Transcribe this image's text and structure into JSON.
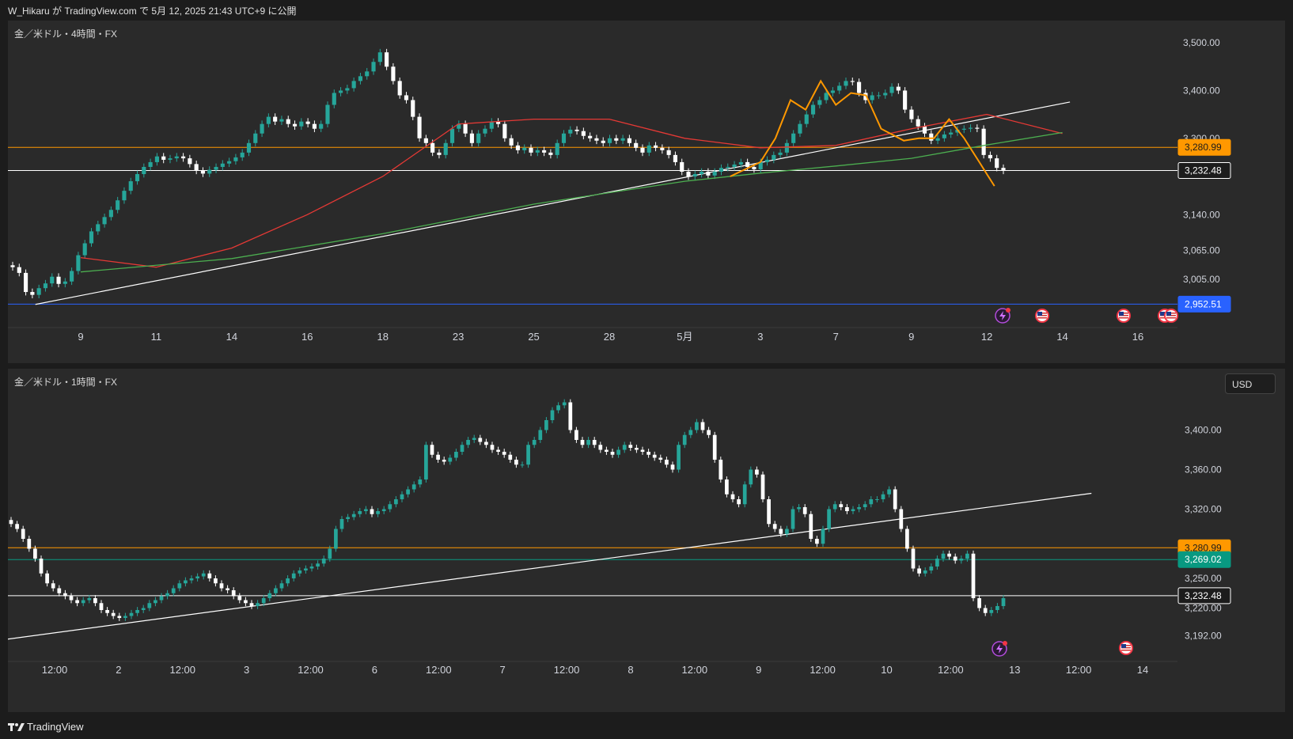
{
  "header": {
    "published_text": "W_Hikaru が TradingView.com で 5月 12, 2025 21:43 UTC+9 に公開"
  },
  "panes": [
    {
      "title": "金／米ドル・4時間・FX"
    },
    {
      "title": "金／米ドル・1時間・FX",
      "currency_button": "USD"
    }
  ],
  "footer": {
    "brand": "TradingView"
  },
  "colors": {
    "background": "#1c1c1c",
    "pane": "#2a2a2a",
    "up_candle": "#26a69a",
    "down_candle": "#ffffff",
    "ema_red": "#e53935",
    "ma_green": "#4caf50",
    "ma_teal": "#26a69a",
    "zigzag": "#ff9800",
    "level_orange": "#ff9800",
    "level_blue": "#2962ff",
    "level_teal": "#089981",
    "trend_line": "#ffffff"
  },
  "chart_data": [
    {
      "type": "candlestick",
      "title": "金／米ドル・4時間・FX",
      "price_axis": {
        "ticks": [
          "3,500.00",
          "3,400.00",
          "3,300.00",
          "3,140.00",
          "3,065.00",
          "3,005.00"
        ],
        "range": [
          2930,
          3530
        ]
      },
      "x_ticks": [
        "9",
        "11",
        "14",
        "16",
        "18",
        "23",
        "25",
        "28",
        "5月",
        "3",
        "7",
        "9",
        "12",
        "14",
        "16"
      ],
      "x_ticks_range": [
        0,
        14
      ],
      "price_labels": [
        {
          "value": 3280.99,
          "label": "3,280.99",
          "color": "#ff9800"
        },
        {
          "value": 3232.48,
          "label": "3,232.48",
          "color": "#ffffff"
        },
        {
          "value": 2952.51,
          "label": "2,952.51",
          "color": "#2962ff"
        }
      ],
      "trend_lines": [
        {
          "from": [
            -0.6,
            2952
          ],
          "to": [
            13.1,
            3376
          ]
        }
      ],
      "closes": [
        3030,
        3018,
        2978,
        2972,
        2986,
        2996,
        3010,
        2995,
        3000,
        3022,
        3055,
        3080,
        3105,
        3120,
        3135,
        3150,
        3170,
        3190,
        3210,
        3225,
        3240,
        3250,
        3262,
        3255,
        3258,
        3262,
        3258,
        3246,
        3232,
        3226,
        3234,
        3240,
        3247,
        3252,
        3260,
        3270,
        3290,
        3310,
        3330,
        3345,
        3335,
        3340,
        3330,
        3325,
        3335,
        3330,
        3320,
        3330,
        3370,
        3395,
        3400,
        3405,
        3420,
        3430,
        3440,
        3460,
        3480,
        3450,
        3420,
        3390,
        3380,
        3345,
        3300,
        3290,
        3270,
        3265,
        3290,
        3320,
        3330,
        3310,
        3290,
        3310,
        3320,
        3335,
        3330,
        3300,
        3285,
        3275,
        3280,
        3270,
        3275,
        3270,
        3265,
        3290,
        3310,
        3318,
        3315,
        3305,
        3300,
        3295,
        3290,
        3300,
        3295,
        3300,
        3290,
        3280,
        3270,
        3285,
        3280,
        3275,
        3265,
        3250,
        3230,
        3220,
        3225,
        3230,
        3222,
        3230,
        3238,
        3240,
        3245,
        3250,
        3240,
        3235,
        3250,
        3255,
        3265,
        3270,
        3290,
        3310,
        3330,
        3350,
        3370,
        3380,
        3395,
        3400,
        3410,
        3420,
        3418,
        3395,
        3380,
        3390,
        3390,
        3395,
        3408,
        3400,
        3360,
        3340,
        3325,
        3310,
        3295,
        3300,
        3308,
        3312,
        3318,
        3320,
        3322,
        3320,
        3265,
        3258,
        3238,
        3232
      ],
      "series": [
        {
          "name": "",
          "color": "#e53935",
          "x": [
            0,
            1,
            2,
            3,
            4,
            5,
            6,
            7,
            8,
            9,
            10,
            11,
            12,
            13
          ],
          "y": [
            3050,
            3030,
            3070,
            3140,
            3220,
            3330,
            3340,
            3340,
            3300,
            3280,
            3285,
            3320,
            3350,
            3310
          ]
        },
        {
          "name": "",
          "color": "#4caf50",
          "x": [
            0,
            2,
            4,
            6,
            8,
            9,
            10,
            11,
            12,
            13
          ],
          "y": [
            3020,
            3048,
            3100,
            3162,
            3210,
            3227,
            3242,
            3258,
            3286,
            3312
          ]
        },
        {
          "name": "",
          "color": "#ff9800",
          "x": [
            8.6,
            9.0,
            9.2,
            9.4,
            9.6,
            9.8,
            10.0,
            10.2,
            10.4,
            10.6,
            10.9,
            11.1,
            11.3,
            11.5,
            11.7,
            11.9,
            12.0,
            12.1
          ],
          "y": [
            3220,
            3250,
            3300,
            3380,
            3360,
            3420,
            3370,
            3395,
            3390,
            3320,
            3295,
            3300,
            3300,
            3340,
            3300,
            3250,
            3225,
            3200
          ]
        }
      ]
    },
    {
      "type": "candlestick",
      "title": "金／米ドル・1時間・FX",
      "price_axis": {
        "ticks": [
          "3,400.00",
          "3,360.00",
          "3,320.00",
          "3,250.00",
          "3,220.00",
          "3,192.00"
        ],
        "range": [
          3170,
          3430
        ]
      },
      "x_ticks": [
        "12:00",
        "2",
        "12:00",
        "3",
        "12:00",
        "6",
        "12:00",
        "7",
        "12:00",
        "8",
        "12:00",
        "9",
        "12:00",
        "10",
        "12:00",
        "13",
        "12:00",
        "14"
      ],
      "x_ticks_range": [
        0,
        17
      ],
      "price_labels": [
        {
          "value": 3280.99,
          "label": "3,280.99",
          "color": "#ff9800"
        },
        {
          "value": 3269.02,
          "label": "3,269.02",
          "color": "#089981"
        },
        {
          "value": 3232.48,
          "label": "3,232.48",
          "color": "#ffffff"
        }
      ],
      "trend_lines": [
        {
          "from": [
            -0.8,
            3188
          ],
          "to": [
            16.2,
            3336
          ]
        }
      ],
      "closes": [
        3305,
        3300,
        3290,
        3280,
        3270,
        3255,
        3245,
        3240,
        3235,
        3232,
        3228,
        3225,
        3228,
        3230,
        3225,
        3218,
        3215,
        3212,
        3210,
        3212,
        3215,
        3218,
        3220,
        3225,
        3228,
        3232,
        3235,
        3240,
        3245,
        3248,
        3250,
        3252,
        3255,
        3250,
        3245,
        3240,
        3238,
        3232,
        3228,
        3225,
        3222,
        3225,
        3230,
        3235,
        3240,
        3245,
        3250,
        3255,
        3258,
        3260,
        3262,
        3265,
        3270,
        3280,
        3300,
        3310,
        3312,
        3315,
        3318,
        3320,
        3315,
        3318,
        3320,
        3325,
        3330,
        3335,
        3340,
        3345,
        3350,
        3385,
        3375,
        3370,
        3368,
        3372,
        3378,
        3385,
        3390,
        3392,
        3388,
        3385,
        3380,
        3378,
        3375,
        3370,
        3365,
        3365,
        3385,
        3390,
        3400,
        3410,
        3420,
        3425,
        3428,
        3400,
        3390,
        3385,
        3390,
        3385,
        3380,
        3378,
        3375,
        3380,
        3385,
        3382,
        3380,
        3378,
        3375,
        3372,
        3370,
        3365,
        3360,
        3385,
        3395,
        3400,
        3408,
        3400,
        3395,
        3370,
        3350,
        3335,
        3330,
        3325,
        3345,
        3360,
        3355,
        3330,
        3305,
        3300,
        3295,
        3300,
        3320,
        3322,
        3315,
        3290,
        3285,
        3300,
        3320,
        3325,
        3322,
        3318,
        3320,
        3322,
        3325,
        3330,
        3330,
        3335,
        3340,
        3320,
        3300,
        3280,
        3260,
        3255,
        3258,
        3262,
        3270,
        3275,
        3272,
        3268,
        3270,
        3275,
        3230,
        3220,
        3215,
        3218,
        3222,
        3230
      ]
    }
  ]
}
